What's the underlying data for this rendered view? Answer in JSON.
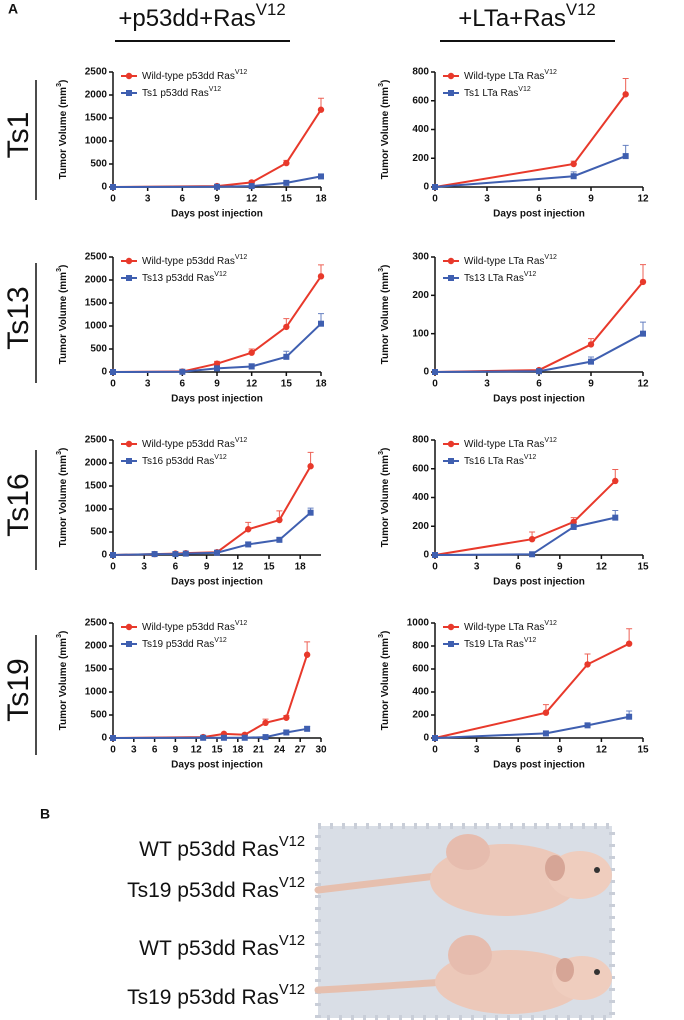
{
  "panel_a": {
    "label": "A",
    "column_titles": [
      "+p53dd+RasV12",
      "+LTa+RasV12"
    ],
    "row_labels": [
      "Ts1",
      "Ts13",
      "Ts16",
      "Ts19"
    ]
  },
  "chart_data": [
    {
      "type": "line",
      "ylabel": "Tumor Volume (mm3)",
      "xlabel": "Days post injection",
      "legend": "upper left",
      "x": [
        0,
        9,
        12,
        15,
        18
      ],
      "xlim": [
        0,
        18
      ],
      "xticks": [
        0,
        3,
        6,
        9,
        12,
        15,
        18
      ],
      "ylim": [
        0,
        2500
      ],
      "yticks": [
        0,
        500,
        1000,
        1500,
        2000,
        2500
      ],
      "series": [
        {
          "name": "Wild-type p53dd RasV12",
          "color": "#e8392b",
          "marker": "circle",
          "values": [
            0,
            20,
            100,
            520,
            1680
          ],
          "errors": [
            0,
            10,
            30,
            60,
            250
          ]
        },
        {
          "name": "Ts1 p53dd RasV12",
          "color": "#3f5fb0",
          "marker": "square",
          "values": [
            0,
            5,
            20,
            90,
            230
          ],
          "errors": [
            0,
            5,
            10,
            20,
            20
          ]
        }
      ]
    },
    {
      "type": "line",
      "ylabel": "Tumor Volume (mm3)",
      "xlabel": "Days post injection",
      "legend": "upper left",
      "x": [
        0,
        8,
        11
      ],
      "xlim": [
        0,
        12
      ],
      "xticks": [
        0,
        3,
        6,
        9,
        12
      ],
      "ylim": [
        0,
        800
      ],
      "yticks": [
        0,
        200,
        400,
        600,
        800
      ],
      "series": [
        {
          "name": "Wild-type LTa RasV12",
          "color": "#e8392b",
          "marker": "circle",
          "values": [
            0,
            160,
            645
          ],
          "errors": [
            0,
            20,
            110
          ]
        },
        {
          "name": "Ts1 LTa RasV12",
          "color": "#3f5fb0",
          "marker": "square",
          "values": [
            0,
            75,
            215
          ],
          "errors": [
            0,
            30,
            75
          ]
        }
      ]
    },
    {
      "type": "line",
      "ylabel": "Tumor Volume (mm3)",
      "xlabel": "Days post injection",
      "legend": "upper left",
      "x": [
        0,
        6,
        9,
        12,
        15,
        18
      ],
      "xlim": [
        0,
        18
      ],
      "xticks": [
        0,
        3,
        6,
        9,
        12,
        15,
        18
      ],
      "ylim": [
        0,
        2500
      ],
      "yticks": [
        0,
        500,
        1000,
        1500,
        2000,
        2500
      ],
      "series": [
        {
          "name": "Wild-type p53dd RasV12",
          "color": "#e8392b",
          "marker": "circle",
          "values": [
            0,
            10,
            180,
            420,
            980,
            2080
          ],
          "errors": [
            0,
            5,
            50,
            80,
            180,
            250
          ]
        },
        {
          "name": "Ts13 p53dd RasV12",
          "color": "#3f5fb0",
          "marker": "square",
          "values": [
            0,
            5,
            80,
            120,
            330,
            1050
          ],
          "errors": [
            0,
            5,
            40,
            60,
            120,
            220
          ]
        }
      ]
    },
    {
      "type": "line",
      "ylabel": "Tumor Volume (mm3)",
      "xlabel": "Days post injection",
      "legend": "upper left",
      "x": [
        0,
        6,
        9,
        12
      ],
      "xlim": [
        0,
        12
      ],
      "xticks": [
        0,
        3,
        6,
        9,
        12
      ],
      "ylim": [
        0,
        300
      ],
      "yticks": [
        0,
        100,
        200,
        300
      ],
      "series": [
        {
          "name": "Wild-type LTa RasV12",
          "color": "#e8392b",
          "marker": "circle",
          "values": [
            0,
            5,
            72,
            235
          ],
          "errors": [
            0,
            3,
            15,
            45
          ]
        },
        {
          "name": "Ts13 LTa RasV12",
          "color": "#3f5fb0",
          "marker": "square",
          "values": [
            0,
            2,
            27,
            100
          ],
          "errors": [
            0,
            2,
            12,
            30
          ]
        }
      ]
    },
    {
      "type": "line",
      "ylabel": "Tumor Volume (mm3)",
      "xlabel": "Days post injection",
      "legend": "upper left",
      "x": [
        0,
        4,
        6,
        7,
        10,
        13,
        16,
        19
      ],
      "xlim": [
        0,
        20
      ],
      "xticks": [
        0,
        3,
        6,
        9,
        12,
        15,
        18
      ],
      "ylim": [
        0,
        2500
      ],
      "yticks": [
        0,
        500,
        1000,
        1500,
        2000,
        2500
      ],
      "series": [
        {
          "name": "Wild-type p53dd RasV12",
          "color": "#e8392b",
          "marker": "circle",
          "values": [
            0,
            20,
            30,
            40,
            60,
            560,
            760,
            1930
          ],
          "errors": [
            0,
            10,
            10,
            10,
            20,
            150,
            200,
            300
          ]
        },
        {
          "name": "Ts16 p53dd RasV12",
          "color": "#3f5fb0",
          "marker": "square",
          "values": [
            0,
            20,
            20,
            30,
            50,
            230,
            330,
            920
          ],
          "errors": [
            0,
            10,
            10,
            10,
            20,
            50,
            40,
            100
          ]
        }
      ]
    },
    {
      "type": "line",
      "ylabel": "Tumor Volume (mm3)",
      "xlabel": "Days post injection",
      "legend": "upper left",
      "x": [
        0,
        7,
        10,
        13
      ],
      "xlim": [
        0,
        15
      ],
      "xticks": [
        0,
        3,
        6,
        9,
        12,
        15
      ],
      "ylim": [
        0,
        800
      ],
      "yticks": [
        0,
        200,
        400,
        600,
        800
      ],
      "series": [
        {
          "name": "Wild-type LTa RasV12",
          "color": "#e8392b",
          "marker": "circle",
          "values": [
            0,
            110,
            230,
            515
          ],
          "errors": [
            0,
            50,
            30,
            80
          ]
        },
        {
          "name": "Ts16 LTa RasV12",
          "color": "#3f5fb0",
          "marker": "square",
          "values": [
            0,
            5,
            195,
            260
          ],
          "errors": [
            0,
            5,
            20,
            50
          ]
        }
      ]
    },
    {
      "type": "line",
      "ylabel": "Tumor Volume (mm3)",
      "xlabel": "Days post injection",
      "legend": "upper left",
      "x": [
        0,
        13,
        16,
        19,
        22,
        25,
        28
      ],
      "xlim": [
        0,
        30
      ],
      "xticks": [
        0,
        3,
        6,
        9,
        12,
        15,
        18,
        21,
        24,
        27,
        30
      ],
      "ylim": [
        0,
        2500
      ],
      "yticks": [
        0,
        500,
        1000,
        1500,
        2000,
        2500
      ],
      "series": [
        {
          "name": "Wild-type p53dd RasV12",
          "color": "#e8392b",
          "marker": "circle",
          "values": [
            0,
            20,
            90,
            70,
            330,
            440,
            1810
          ],
          "errors": [
            0,
            10,
            20,
            20,
            80,
            50,
            280
          ]
        },
        {
          "name": "Ts19 p53dd RasV12",
          "color": "#3f5fb0",
          "marker": "square",
          "values": [
            0,
            5,
            5,
            5,
            20,
            120,
            200
          ],
          "errors": [
            0,
            5,
            5,
            5,
            10,
            30,
            50
          ]
        }
      ]
    },
    {
      "type": "line",
      "ylabel": "Tumor Volume (mm3)",
      "xlabel": "Days post injection",
      "legend": "upper left",
      "x": [
        0,
        8,
        11,
        14
      ],
      "xlim": [
        0,
        15
      ],
      "xticks": [
        0,
        3,
        6,
        9,
        12,
        15
      ],
      "ylim": [
        0,
        1000
      ],
      "yticks": [
        0,
        200,
        400,
        600,
        800,
        1000
      ],
      "series": [
        {
          "name": "Wild-type LTa RasV12",
          "color": "#e8392b",
          "marker": "circle",
          "values": [
            0,
            220,
            640,
            820
          ],
          "errors": [
            0,
            70,
            90,
            130
          ]
        },
        {
          "name": "Ts19 LTa RasV12",
          "color": "#3f5fb0",
          "marker": "square",
          "values": [
            0,
            40,
            110,
            185
          ],
          "errors": [
            0,
            10,
            20,
            50
          ]
        }
      ]
    }
  ],
  "panel_b": {
    "label": "B",
    "photo_labels": [
      "WT p53dd RasV12",
      "Ts19 p53dd RasV12",
      "WT p53dd RasV12",
      "Ts19 p53dd RasV12"
    ]
  }
}
